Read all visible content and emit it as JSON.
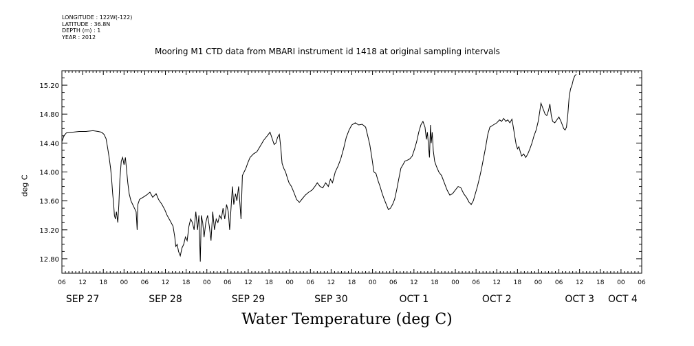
{
  "meta": {
    "longitude": "LONGITUDE : 122W(-122)",
    "latitude": "LATITUDE : 36.8N",
    "depth": "DEPTH (m) : 1",
    "year": "YEAR : 2012"
  },
  "chart_data": {
    "type": "line",
    "title": "Mooring M1 CTD data from MBARI instrument id 1418 at original sampling intervals",
    "ylabel": "deg C",
    "xlabel": "Water Temperature (deg C)",
    "ylim": [
      12.6,
      15.4
    ],
    "y_ticks": [
      "12.80",
      "13.20",
      "13.60",
      "14.00",
      "14.40",
      "14.80",
      "15.20"
    ],
    "x_unit": "hours",
    "xlim": [
      0,
      168
    ],
    "hour_ticks": [
      {
        "h": 0,
        "label": "06"
      },
      {
        "h": 6,
        "label": "12"
      },
      {
        "h": 12,
        "label": "18"
      },
      {
        "h": 18,
        "label": "00"
      },
      {
        "h": 24,
        "label": "06"
      },
      {
        "h": 30,
        "label": "12"
      },
      {
        "h": 36,
        "label": "18"
      },
      {
        "h": 42,
        "label": "00"
      },
      {
        "h": 48,
        "label": "06"
      },
      {
        "h": 54,
        "label": "12"
      },
      {
        "h": 60,
        "label": "18"
      },
      {
        "h": 66,
        "label": "00"
      },
      {
        "h": 72,
        "label": "06"
      },
      {
        "h": 78,
        "label": "12"
      },
      {
        "h": 84,
        "label": "18"
      },
      {
        "h": 90,
        "label": "00"
      },
      {
        "h": 96,
        "label": "06"
      },
      {
        "h": 102,
        "label": "12"
      },
      {
        "h": 108,
        "label": "18"
      },
      {
        "h": 114,
        "label": "00"
      },
      {
        "h": 120,
        "label": "06"
      },
      {
        "h": 126,
        "label": "12"
      },
      {
        "h": 132,
        "label": "18"
      },
      {
        "h": 138,
        "label": "00"
      },
      {
        "h": 144,
        "label": "06"
      },
      {
        "h": 150,
        "label": "12"
      },
      {
        "h": 156,
        "label": "18"
      },
      {
        "h": 162,
        "label": "00"
      },
      {
        "h": 168,
        "label": "06"
      }
    ],
    "day_labels": [
      {
        "h": 6,
        "label": "SEP 27"
      },
      {
        "h": 30,
        "label": "SEP 28"
      },
      {
        "h": 54,
        "label": "SEP 29"
      },
      {
        "h": 78,
        "label": "SEP 30"
      },
      {
        "h": 102,
        "label": "OCT  1"
      },
      {
        "h": 126,
        "label": "OCT  2"
      },
      {
        "h": 150,
        "label": "OCT  3"
      },
      {
        "h": 162.5,
        "label": "OCT  4"
      }
    ],
    "series": [
      {
        "points": [
          [
            0,
            14.42
          ],
          [
            0.6,
            14.5
          ],
          [
            1.3,
            14.54
          ],
          [
            3,
            14.55
          ],
          [
            5,
            14.56
          ],
          [
            7,
            14.56
          ],
          [
            9,
            14.57
          ],
          [
            10.5,
            14.56
          ],
          [
            11.5,
            14.55
          ],
          [
            12.2,
            14.52
          ],
          [
            12.8,
            14.46
          ],
          [
            13.2,
            14.35
          ],
          [
            13.7,
            14.2
          ],
          [
            14.1,
            14.05
          ],
          [
            14.4,
            13.9
          ],
          [
            14.7,
            13.7
          ],
          [
            15.0,
            13.55
          ],
          [
            15.2,
            13.4
          ],
          [
            15.5,
            13.35
          ],
          [
            15.8,
            13.45
          ],
          [
            16.2,
            13.3
          ],
          [
            16.5,
            13.55
          ],
          [
            16.8,
            13.9
          ],
          [
            17.2,
            14.15
          ],
          [
            17.6,
            14.2
          ],
          [
            18.0,
            14.1
          ],
          [
            18.4,
            14.2
          ],
          [
            18.7,
            14.05
          ],
          [
            19.1,
            13.85
          ],
          [
            19.5,
            13.7
          ],
          [
            20.0,
            13.6
          ],
          [
            20.5,
            13.55
          ],
          [
            21.0,
            13.5
          ],
          [
            21.5,
            13.45
          ],
          [
            21.8,
            13.2
          ],
          [
            22.0,
            13.55
          ],
          [
            22.5,
            13.62
          ],
          [
            23.5,
            13.65
          ],
          [
            24.5,
            13.68
          ],
          [
            25.5,
            13.72
          ],
          [
            26.3,
            13.65
          ],
          [
            27.3,
            13.7
          ],
          [
            28.0,
            13.62
          ],
          [
            29.0,
            13.55
          ],
          [
            29.8,
            13.48
          ],
          [
            30.5,
            13.4
          ],
          [
            31.3,
            13.33
          ],
          [
            32.2,
            13.25
          ],
          [
            32.7,
            13.1
          ],
          [
            33.0,
            12.97
          ],
          [
            33.4,
            13.0
          ],
          [
            33.8,
            12.9
          ],
          [
            34.3,
            12.84
          ],
          [
            34.8,
            12.95
          ],
          [
            35.3,
            13.0
          ],
          [
            35.8,
            13.1
          ],
          [
            36.3,
            13.05
          ],
          [
            36.8,
            13.25
          ],
          [
            37.3,
            13.35
          ],
          [
            37.8,
            13.3
          ],
          [
            38.3,
            13.2
          ],
          [
            38.8,
            13.45
          ],
          [
            39.3,
            13.2
          ],
          [
            39.7,
            13.4
          ],
          [
            40.1,
            12.76
          ],
          [
            40.4,
            13.4
          ],
          [
            40.8,
            13.3
          ],
          [
            41.2,
            13.1
          ],
          [
            41.7,
            13.3
          ],
          [
            42.2,
            13.4
          ],
          [
            42.7,
            13.25
          ],
          [
            43.2,
            13.05
          ],
          [
            43.7,
            13.45
          ],
          [
            44.2,
            13.2
          ],
          [
            44.7,
            13.35
          ],
          [
            45.2,
            13.3
          ],
          [
            45.7,
            13.4
          ],
          [
            46.2,
            13.35
          ],
          [
            46.7,
            13.5
          ],
          [
            47.2,
            13.35
          ],
          [
            47.7,
            13.55
          ],
          [
            48.2,
            13.45
          ],
          [
            48.6,
            13.2
          ],
          [
            49.0,
            13.5
          ],
          [
            49.4,
            13.8
          ],
          [
            49.8,
            13.55
          ],
          [
            50.3,
            13.7
          ],
          [
            50.7,
            13.6
          ],
          [
            51.2,
            13.8
          ],
          [
            51.6,
            13.55
          ],
          [
            51.9,
            13.35
          ],
          [
            52.3,
            13.95
          ],
          [
            52.8,
            14.0
          ],
          [
            53.3,
            14.05
          ],
          [
            53.8,
            14.12
          ],
          [
            54.5,
            14.2
          ],
          [
            55.5,
            14.25
          ],
          [
            56.5,
            14.28
          ],
          [
            57.5,
            14.36
          ],
          [
            58.5,
            14.44
          ],
          [
            59.5,
            14.5
          ],
          [
            60.3,
            14.55
          ],
          [
            61.0,
            14.45
          ],
          [
            61.5,
            14.38
          ],
          [
            62.0,
            14.4
          ],
          [
            62.5,
            14.48
          ],
          [
            63.0,
            14.52
          ],
          [
            63.4,
            14.35
          ],
          [
            63.8,
            14.12
          ],
          [
            64.3,
            14.05
          ],
          [
            64.8,
            14.0
          ],
          [
            65.3,
            13.92
          ],
          [
            65.8,
            13.85
          ],
          [
            66.5,
            13.8
          ],
          [
            67.2,
            13.72
          ],
          [
            68.0,
            13.62
          ],
          [
            68.8,
            13.58
          ],
          [
            69.5,
            13.62
          ],
          [
            70.5,
            13.68
          ],
          [
            71.5,
            13.72
          ],
          [
            72.5,
            13.75
          ],
          [
            73.3,
            13.8
          ],
          [
            74.0,
            13.85
          ],
          [
            74.8,
            13.8
          ],
          [
            75.6,
            13.78
          ],
          [
            76.4,
            13.85
          ],
          [
            77.2,
            13.8
          ],
          [
            77.8,
            13.9
          ],
          [
            78.4,
            13.85
          ],
          [
            79.2,
            14.0
          ],
          [
            80.0,
            14.08
          ],
          [
            80.8,
            14.18
          ],
          [
            81.6,
            14.32
          ],
          [
            82.4,
            14.48
          ],
          [
            83.2,
            14.58
          ],
          [
            84.0,
            14.65
          ],
          [
            85.0,
            14.68
          ],
          [
            86.0,
            14.65
          ],
          [
            87.0,
            14.66
          ],
          [
            88.0,
            14.62
          ],
          [
            88.6,
            14.5
          ],
          [
            89.2,
            14.38
          ],
          [
            89.8,
            14.2
          ],
          [
            90.4,
            14.0
          ],
          [
            91.0,
            13.98
          ],
          [
            91.6,
            13.88
          ],
          [
            92.2,
            13.8
          ],
          [
            92.8,
            13.7
          ],
          [
            93.4,
            13.62
          ],
          [
            94.0,
            13.55
          ],
          [
            94.6,
            13.48
          ],
          [
            95.2,
            13.5
          ],
          [
            95.8,
            13.55
          ],
          [
            96.4,
            13.62
          ],
          [
            97.0,
            13.75
          ],
          [
            97.6,
            13.9
          ],
          [
            98.2,
            14.05
          ],
          [
            98.8,
            14.1
          ],
          [
            99.4,
            14.15
          ],
          [
            100.0,
            14.16
          ],
          [
            100.8,
            14.18
          ],
          [
            101.5,
            14.22
          ],
          [
            102.2,
            14.32
          ],
          [
            102.8,
            14.42
          ],
          [
            103.4,
            14.55
          ],
          [
            104.0,
            14.65
          ],
          [
            104.6,
            14.7
          ],
          [
            105.2,
            14.62
          ],
          [
            105.6,
            14.45
          ],
          [
            105.9,
            14.55
          ],
          [
            106.2,
            14.38
          ],
          [
            106.5,
            14.2
          ],
          [
            106.8,
            14.65
          ],
          [
            107.0,
            14.4
          ],
          [
            107.3,
            14.55
          ],
          [
            107.6,
            14.3
          ],
          [
            108.0,
            14.15
          ],
          [
            108.5,
            14.08
          ],
          [
            109.2,
            14.0
          ],
          [
            110.0,
            13.95
          ],
          [
            110.8,
            13.85
          ],
          [
            111.6,
            13.75
          ],
          [
            112.4,
            13.68
          ],
          [
            113.2,
            13.7
          ],
          [
            114.0,
            13.75
          ],
          [
            114.8,
            13.8
          ],
          [
            115.6,
            13.78
          ],
          [
            116.4,
            13.7
          ],
          [
            117.2,
            13.65
          ],
          [
            118.0,
            13.58
          ],
          [
            118.6,
            13.55
          ],
          [
            119.2,
            13.6
          ],
          [
            119.8,
            13.7
          ],
          [
            120.4,
            13.8
          ],
          [
            121.0,
            13.92
          ],
          [
            121.6,
            14.05
          ],
          [
            122.2,
            14.2
          ],
          [
            122.8,
            14.35
          ],
          [
            123.4,
            14.52
          ],
          [
            124.0,
            14.62
          ],
          [
            125.0,
            14.65
          ],
          [
            126.0,
            14.68
          ],
          [
            126.8,
            14.72
          ],
          [
            127.4,
            14.7
          ],
          [
            128.0,
            14.74
          ],
          [
            128.6,
            14.7
          ],
          [
            129.2,
            14.72
          ],
          [
            129.8,
            14.68
          ],
          [
            130.4,
            14.73
          ],
          [
            130.8,
            14.62
          ],
          [
            131.2,
            14.5
          ],
          [
            131.6,
            14.38
          ],
          [
            132.0,
            14.32
          ],
          [
            132.4,
            14.35
          ],
          [
            132.8,
            14.28
          ],
          [
            133.2,
            14.22
          ],
          [
            133.8,
            14.25
          ],
          [
            134.4,
            14.2
          ],
          [
            135.0,
            14.25
          ],
          [
            135.6,
            14.32
          ],
          [
            136.2,
            14.4
          ],
          [
            136.8,
            14.5
          ],
          [
            137.4,
            14.58
          ],
          [
            138.0,
            14.7
          ],
          [
            138.4,
            14.82
          ],
          [
            138.8,
            14.95
          ],
          [
            139.2,
            14.9
          ],
          [
            139.6,
            14.85
          ],
          [
            140.0,
            14.8
          ],
          [
            140.5,
            14.78
          ],
          [
            141.0,
            14.85
          ],
          [
            141.4,
            14.94
          ],
          [
            141.8,
            14.78
          ],
          [
            142.2,
            14.7
          ],
          [
            142.8,
            14.68
          ],
          [
            143.4,
            14.72
          ],
          [
            144.0,
            14.76
          ],
          [
            144.6,
            14.7
          ],
          [
            145.0,
            14.65
          ],
          [
            145.4,
            14.6
          ],
          [
            145.8,
            14.58
          ],
          [
            146.2,
            14.62
          ],
          [
            146.6,
            14.8
          ],
          [
            147.0,
            15.05
          ],
          [
            147.4,
            15.15
          ],
          [
            147.8,
            15.2
          ],
          [
            148.2,
            15.28
          ],
          [
            148.6,
            15.33
          ],
          [
            149.0,
            15.35
          ]
        ]
      }
    ]
  }
}
